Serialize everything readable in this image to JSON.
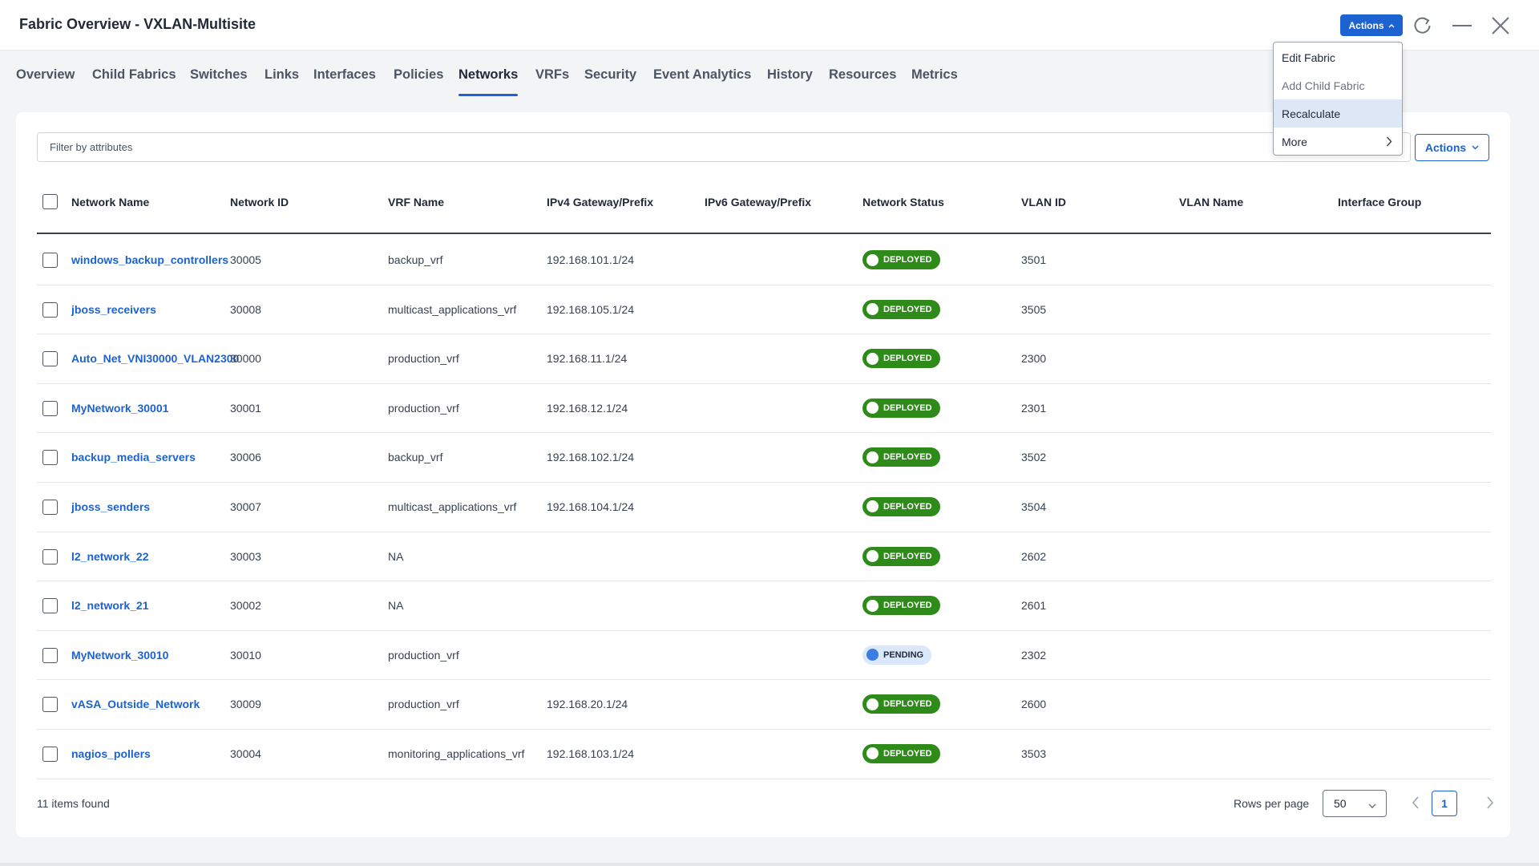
{
  "window": {
    "title": "Fabric Overview - VXLAN-Multisite",
    "actions_label": "Actions"
  },
  "tabs": [
    {
      "label": "Overview"
    },
    {
      "label": "Child Fabrics"
    },
    {
      "label": "Switches"
    },
    {
      "label": "Links"
    },
    {
      "label": "Interfaces"
    },
    {
      "label": "Policies"
    },
    {
      "label": "Networks",
      "active": true
    },
    {
      "label": "VRFs"
    },
    {
      "label": "Security"
    },
    {
      "label": "Event Analytics"
    },
    {
      "label": "History"
    },
    {
      "label": "Resources"
    },
    {
      "label": "Metrics"
    }
  ],
  "actions_menu": {
    "items": [
      {
        "label": "Edit Fabric"
      },
      {
        "label": "Add Child Fabric",
        "disabled": true
      },
      {
        "label": "Recalculate",
        "highlighted": true
      },
      {
        "label": "More",
        "has_submenu": true
      }
    ]
  },
  "filter": {
    "placeholder": "Filter by attributes"
  },
  "table_actions_label": "Actions",
  "table": {
    "columns": [
      "Network Name",
      "Network ID",
      "VRF Name",
      "IPv4 Gateway/Prefix",
      "IPv6 Gateway/Prefix",
      "Network Status",
      "VLAN ID",
      "VLAN Name",
      "Interface Group"
    ],
    "rows": [
      {
        "name": "windows_backup_controllers",
        "id": "30005",
        "vrf": "backup_vrf",
        "ipv4": "192.168.101.1/24",
        "ipv6": "",
        "status": "DEPLOYED",
        "vlan_id": "3501",
        "vlan_name": "",
        "iface_group": ""
      },
      {
        "name": "jboss_receivers",
        "id": "30008",
        "vrf": "multicast_applications_vrf",
        "ipv4": "192.168.105.1/24",
        "ipv6": "",
        "status": "DEPLOYED",
        "vlan_id": "3505",
        "vlan_name": "",
        "iface_group": ""
      },
      {
        "name": "Auto_Net_VNI30000_VLAN2300",
        "id": "30000",
        "vrf": "production_vrf",
        "ipv4": "192.168.11.1/24",
        "ipv6": "",
        "status": "DEPLOYED",
        "vlan_id": "2300",
        "vlan_name": "",
        "iface_group": ""
      },
      {
        "name": "MyNetwork_30001",
        "id": "30001",
        "vrf": "production_vrf",
        "ipv4": "192.168.12.1/24",
        "ipv6": "",
        "status": "DEPLOYED",
        "vlan_id": "2301",
        "vlan_name": "",
        "iface_group": ""
      },
      {
        "name": "backup_media_servers",
        "id": "30006",
        "vrf": "backup_vrf",
        "ipv4": "192.168.102.1/24",
        "ipv6": "",
        "status": "DEPLOYED",
        "vlan_id": "3502",
        "vlan_name": "",
        "iface_group": ""
      },
      {
        "name": "jboss_senders",
        "id": "30007",
        "vrf": "multicast_applications_vrf",
        "ipv4": "192.168.104.1/24",
        "ipv6": "",
        "status": "DEPLOYED",
        "vlan_id": "3504",
        "vlan_name": "",
        "iface_group": ""
      },
      {
        "name": "l2_network_22",
        "id": "30003",
        "vrf": "NA",
        "ipv4": "",
        "ipv6": "",
        "status": "DEPLOYED",
        "vlan_id": "2602",
        "vlan_name": "",
        "iface_group": ""
      },
      {
        "name": "l2_network_21",
        "id": "30002",
        "vrf": "NA",
        "ipv4": "",
        "ipv6": "",
        "status": "DEPLOYED",
        "vlan_id": "2601",
        "vlan_name": "",
        "iface_group": ""
      },
      {
        "name": "MyNetwork_30010",
        "id": "30010",
        "vrf": "production_vrf",
        "ipv4": "",
        "ipv6": "",
        "status": "PENDING",
        "vlan_id": "2302",
        "vlan_name": "",
        "iface_group": ""
      },
      {
        "name": "vASA_Outside_Network",
        "id": "30009",
        "vrf": "production_vrf",
        "ipv4": "192.168.20.1/24",
        "ipv6": "",
        "status": "DEPLOYED",
        "vlan_id": "2600",
        "vlan_name": "",
        "iface_group": ""
      },
      {
        "name": "nagios_pollers",
        "id": "30004",
        "vrf": "monitoring_applications_vrf",
        "ipv4": "192.168.103.1/24",
        "ipv6": "",
        "status": "DEPLOYED",
        "vlan_id": "3503",
        "vlan_name": "",
        "iface_group": ""
      }
    ]
  },
  "footer": {
    "items_found": "11 items found",
    "rows_per_page_label": "Rows per page",
    "rows_per_page_value": "50",
    "current_page": "1"
  },
  "colors": {
    "accent": "#1d62d1",
    "deployed": "#2e8a19",
    "pending_bg": "#dbe7fb",
    "pending_dot": "#3b7de0"
  },
  "icons": [
    "refresh-icon",
    "minimize-icon",
    "close-icon",
    "chevron-down-icon",
    "chevron-right-icon",
    "chevron-left-icon"
  ]
}
